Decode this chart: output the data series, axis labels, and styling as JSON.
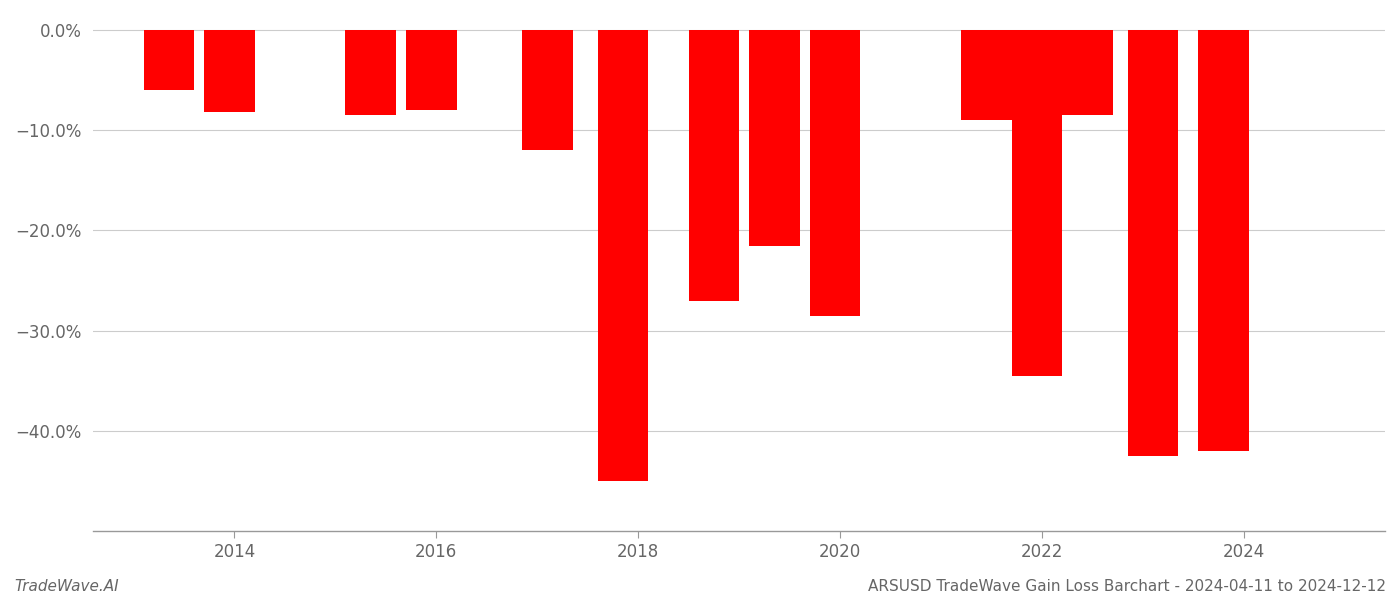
{
  "bars": [
    {
      "x": 2013.35,
      "v": -6.0
    },
    {
      "x": 2013.95,
      "v": -8.2
    },
    {
      "x": 2015.35,
      "v": -8.5
    },
    {
      "x": 2015.95,
      "v": -8.0
    },
    {
      "x": 2017.1,
      "v": -12.0
    },
    {
      "x": 2017.85,
      "v": -45.0
    },
    {
      "x": 2018.75,
      "v": -27.0
    },
    {
      "x": 2019.35,
      "v": -21.5
    },
    {
      "x": 2019.95,
      "v": -28.5
    },
    {
      "x": 2021.45,
      "v": -9.0
    },
    {
      "x": 2021.95,
      "v": -34.5
    },
    {
      "x": 2022.45,
      "v": -8.5
    },
    {
      "x": 2023.1,
      "v": -42.5
    },
    {
      "x": 2023.8,
      "v": -42.0
    }
  ],
  "bar_color": "#ff0000",
  "bar_width": 0.5,
  "ylim": [
    -50,
    1.5
  ],
  "yticks": [
    0.0,
    -10.0,
    -20.0,
    -30.0,
    -40.0
  ],
  "ytick_labels": [
    "0.0%",
    "−10.0%",
    "−20.0%",
    "−30.0%",
    "−40.0%"
  ],
  "xlabel_ticks": [
    2014,
    2016,
    2018,
    2020,
    2022,
    2024
  ],
  "xlim": [
    2012.6,
    2025.4
  ],
  "grid_color": "#cccccc",
  "background_color": "#ffffff",
  "footer_left": "TradeWave.AI",
  "footer_right": "ARSUSD TradeWave Gain Loss Barchart - 2024-04-11 to 2024-12-12",
  "footer_fontsize": 11
}
